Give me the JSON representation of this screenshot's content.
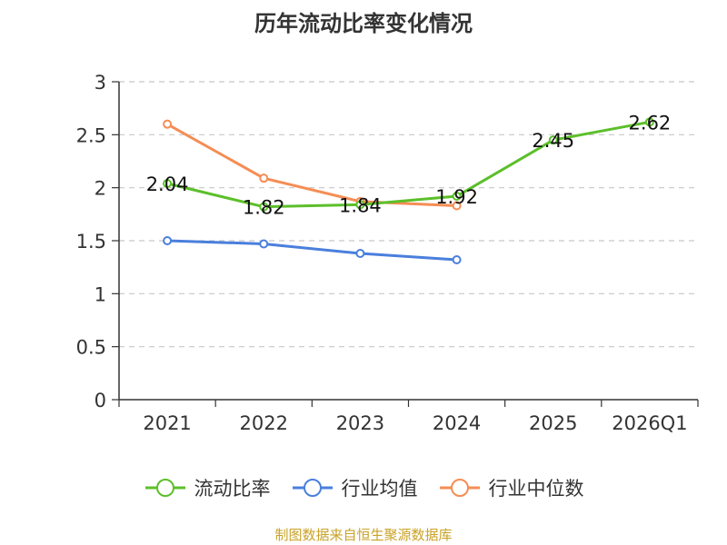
{
  "chart_data": {
    "type": "line",
    "title": "历年流动比率变化情况",
    "categories": [
      "2021",
      "2022",
      "2023",
      "2024",
      "2025",
      "2026Q1"
    ],
    "ylim": [
      0,
      3
    ],
    "yticks": [
      "0",
      "0.5",
      "1",
      "1.5",
      "2",
      "2.5",
      "3"
    ],
    "grid": true,
    "legend_position": "bottom",
    "series": [
      {
        "name": "流动比率",
        "color": "#5cbf2a",
        "values": [
          2.04,
          1.82,
          1.84,
          1.92,
          2.45,
          2.62
        ],
        "labels": [
          "2.04",
          "1.82",
          "1.84",
          "1.92",
          "2.45",
          "2.62"
        ]
      },
      {
        "name": "行业均值",
        "color": "#4a7fdc",
        "values": [
          1.5,
          1.47,
          1.38,
          1.32,
          null,
          null
        ]
      },
      {
        "name": "行业中位数",
        "color": "#f58d54",
        "values": [
          2.6,
          2.09,
          1.87,
          1.83,
          null,
          null
        ]
      }
    ]
  },
  "source_note": "制图数据来自恒生聚源数据库",
  "source_color": "#c9a227"
}
